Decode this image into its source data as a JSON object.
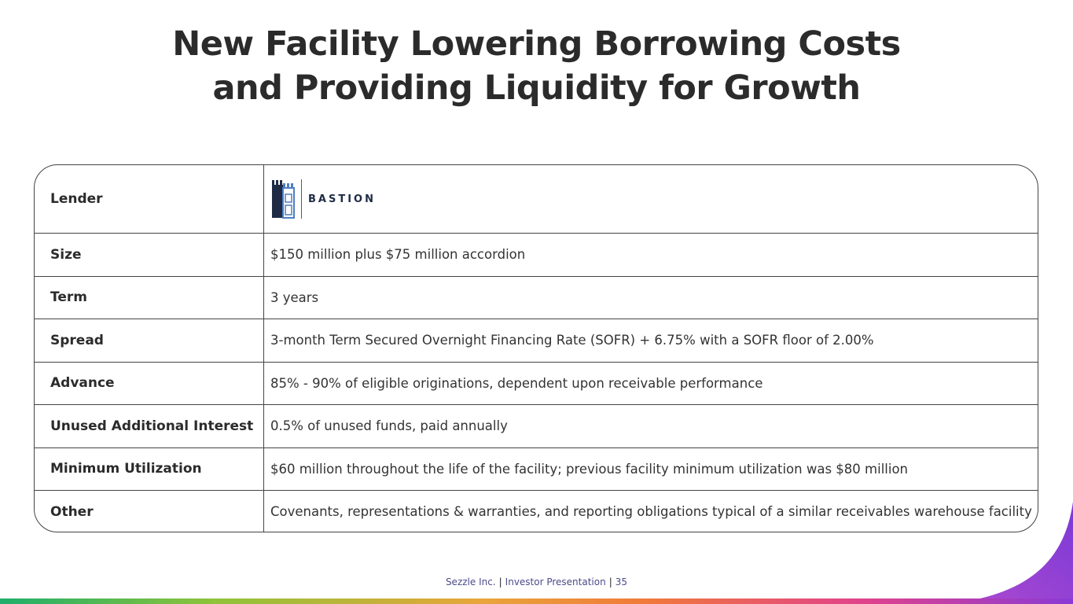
{
  "title": {
    "line1": "New Facility Lowering Borrowing Costs",
    "line2": "and Providing Liquidity for Growth"
  },
  "terms": {
    "lender_label": "Lender",
    "lender_logo_text": "BASTION",
    "rows": [
      {
        "label": "Size",
        "value": "$150 million plus $75 million accordion"
      },
      {
        "label": "Term",
        "value": "3 years"
      },
      {
        "label": "Spread",
        "value": "3-month Term Secured Overnight Financing Rate (SOFR) + 6.75% with a SOFR floor of 2.00%"
      },
      {
        "label": "Advance",
        "value": "85% - 90% of eligible originations, dependent upon receivable performance"
      },
      {
        "label": "Unused Additional Interest",
        "value": "0.5% of unused funds, paid annually"
      },
      {
        "label": "Minimum Utilization",
        "value": "$60 million throughout the life of the facility; previous facility minimum utilization was $80 million"
      },
      {
        "label": "Other",
        "value": "Covenants, representations & warranties, and reporting obligations typical of a similar receivables warehouse facility"
      }
    ]
  },
  "footer": {
    "company": "Sezzle Inc.",
    "deck": "Investor Presentation",
    "page": "35"
  },
  "colors": {
    "logo_navy": "#1f2b44",
    "logo_blue": "#4f7fc4",
    "swoosh_purple": "#8a3ad6"
  }
}
